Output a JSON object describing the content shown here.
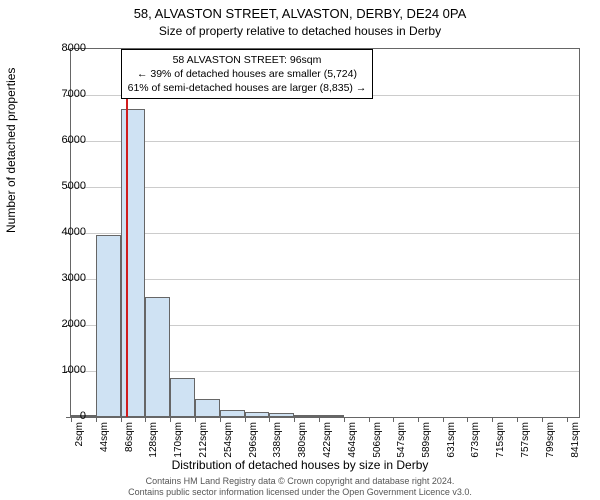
{
  "chart": {
    "type": "histogram",
    "title_main": "58, ALVASTON STREET, ALVASTON, DERBY, DE24 0PA",
    "title_sub": "Size of property relative to detached houses in Derby",
    "ylabel": "Number of detached properties",
    "xlabel": "Distribution of detached houses by size in Derby",
    "footer_line1": "Contains HM Land Registry data © Crown copyright and database right 2024.",
    "footer_line2": "Contains public sector information licensed under the Open Government Licence v3.0.",
    "background_color": "#ffffff",
    "grid_color": "#cccccc",
    "axis_color": "#666666",
    "bar_fill": "#cfe2f3",
    "bar_stroke": "#666666",
    "refline_color": "#d01c1c",
    "ylim": [
      0,
      8000
    ],
    "yticks": [
      0,
      1000,
      2000,
      3000,
      4000,
      5000,
      6000,
      7000,
      8000
    ],
    "xlim": [
      2,
      862
    ],
    "xticks": [
      2,
      44,
      86,
      128,
      170,
      212,
      254,
      296,
      338,
      380,
      422,
      464,
      506,
      547,
      589,
      631,
      673,
      715,
      757,
      799,
      841
    ],
    "xtick_suffix": "sqm",
    "bin_width": 42,
    "bins": [
      {
        "start": 2,
        "count": 5
      },
      {
        "start": 44,
        "count": 3950
      },
      {
        "start": 86,
        "count": 6700
      },
      {
        "start": 128,
        "count": 2600
      },
      {
        "start": 170,
        "count": 850
      },
      {
        "start": 212,
        "count": 400
      },
      {
        "start": 254,
        "count": 160
      },
      {
        "start": 296,
        "count": 100
      },
      {
        "start": 338,
        "count": 80
      },
      {
        "start": 380,
        "count": 50
      },
      {
        "start": 422,
        "count": 20
      },
      {
        "start": 464,
        "count": 0
      },
      {
        "start": 506,
        "count": 0
      },
      {
        "start": 547,
        "count": 0
      },
      {
        "start": 589,
        "count": 0
      },
      {
        "start": 631,
        "count": 0
      },
      {
        "start": 673,
        "count": 0
      },
      {
        "start": 715,
        "count": 0
      },
      {
        "start": 757,
        "count": 0
      },
      {
        "start": 799,
        "count": 0
      }
    ],
    "reference_value": 96,
    "annotation": {
      "line1": "58 ALVASTON STREET: 96sqm",
      "line2": "← 39% of detached houses are smaller (5,724)",
      "line3": "61% of semi-detached houses are larger (8,835) →",
      "x_data": 86,
      "y_data": 7400
    }
  }
}
